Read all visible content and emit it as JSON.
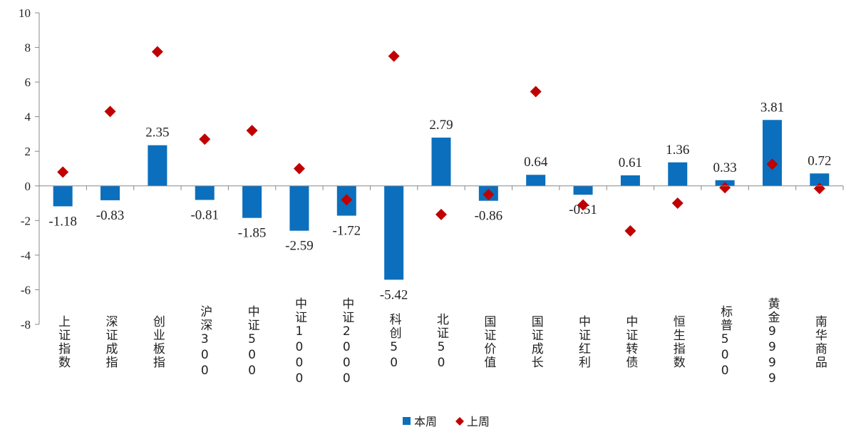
{
  "chart_data": {
    "type": "bar",
    "title": "",
    "xlabel": "",
    "ylabel": "",
    "ylim": [
      -8,
      10
    ],
    "yticks": [
      10,
      8,
      6,
      4,
      2,
      0,
      -2,
      -4,
      -6,
      -8
    ],
    "categories": [
      "上证指数",
      "深证成指",
      "创业板指",
      "沪深300",
      "中证500",
      "中证1000",
      "中证2000",
      "科创50",
      "北证50",
      "国证价值",
      "国证成长",
      "中证红利",
      "中证转债",
      "恒生指数",
      "标普500",
      "黄金9999",
      "南华商品"
    ],
    "series": [
      {
        "name": "本周",
        "kind": "bar",
        "color": "#0b6fbd",
        "values": [
          -1.18,
          -0.83,
          2.35,
          -0.81,
          -1.85,
          -2.59,
          -1.72,
          -5.42,
          2.79,
          -0.86,
          0.64,
          -0.51,
          0.61,
          1.36,
          0.33,
          3.81,
          0.72
        ],
        "labels": [
          "-1.18",
          "-0.83",
          "2.35",
          "-0.81",
          "-1.85",
          "-2.59",
          "-1.72",
          "-5.42",
          "2.79",
          "-0.86",
          "0.64",
          "-0.51",
          "0.61",
          "1.36",
          "0.33",
          "3.81",
          "0.72"
        ]
      },
      {
        "name": "上周",
        "kind": "scatter",
        "marker": "diamond",
        "color": "#c00000",
        "values": [
          0.8,
          4.3,
          7.75,
          2.7,
          3.2,
          1.0,
          -0.8,
          7.5,
          -1.65,
          -0.5,
          5.45,
          -1.1,
          -2.6,
          -1.0,
          -0.1,
          1.25,
          -0.15
        ]
      }
    ],
    "legend": {
      "position": "bottom-center",
      "entries": [
        "本周",
        "上周"
      ]
    }
  }
}
